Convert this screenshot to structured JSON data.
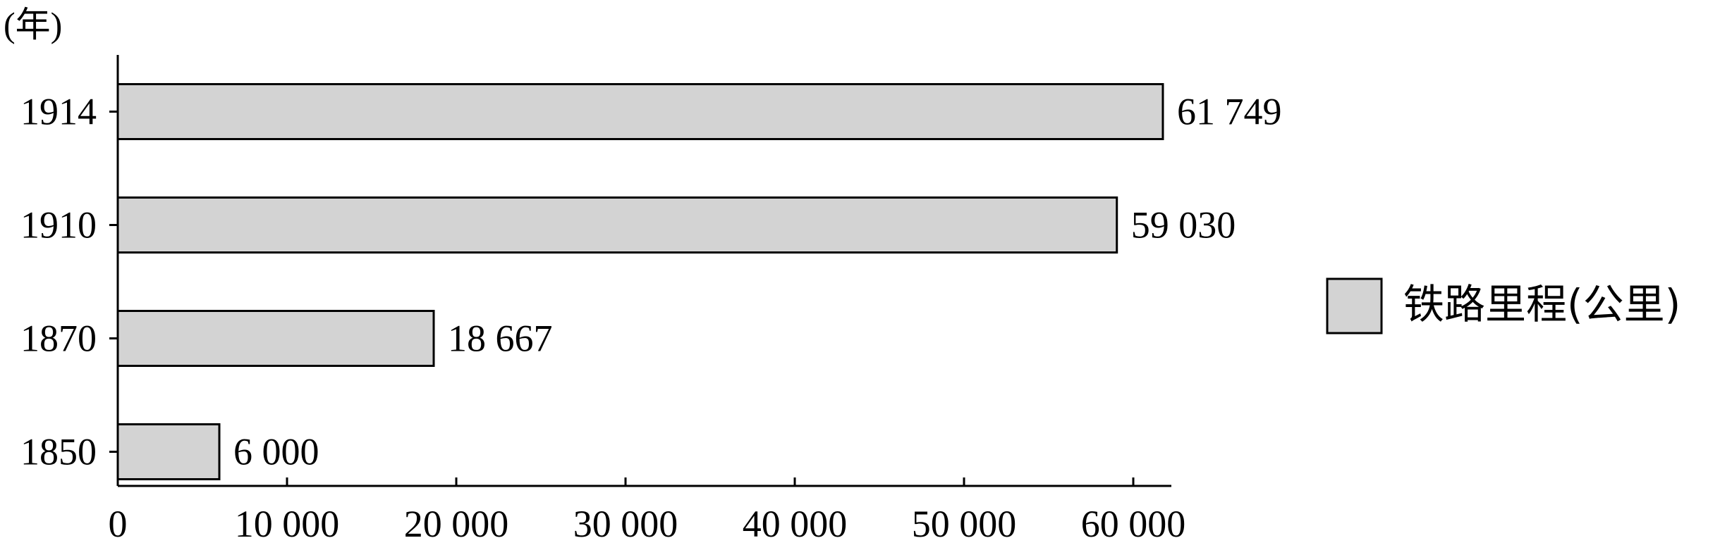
{
  "chart_data": {
    "type": "bar",
    "orientation": "horizontal",
    "categories": [
      "1914",
      "1910",
      "1870",
      "1850"
    ],
    "values": [
      61749,
      59030,
      18667,
      6000
    ],
    "value_labels": [
      "61 749",
      "59 030",
      "18 667",
      "6 000"
    ],
    "y_unit_label": "(年)",
    "x_ticks": [
      0,
      10000,
      20000,
      30000,
      40000,
      50000,
      60000
    ],
    "x_tick_labels": [
      "0",
      "10 000",
      "20 000",
      "30 000",
      "40 000",
      "50 000",
      "60 000"
    ],
    "xlim": [
      0,
      65000
    ],
    "legend": {
      "label": "铁路里程(公里)",
      "position": "right"
    },
    "colors": {
      "bar_fill": "#d3d3d3",
      "bar_stroke": "#000000"
    },
    "grid": false
  }
}
